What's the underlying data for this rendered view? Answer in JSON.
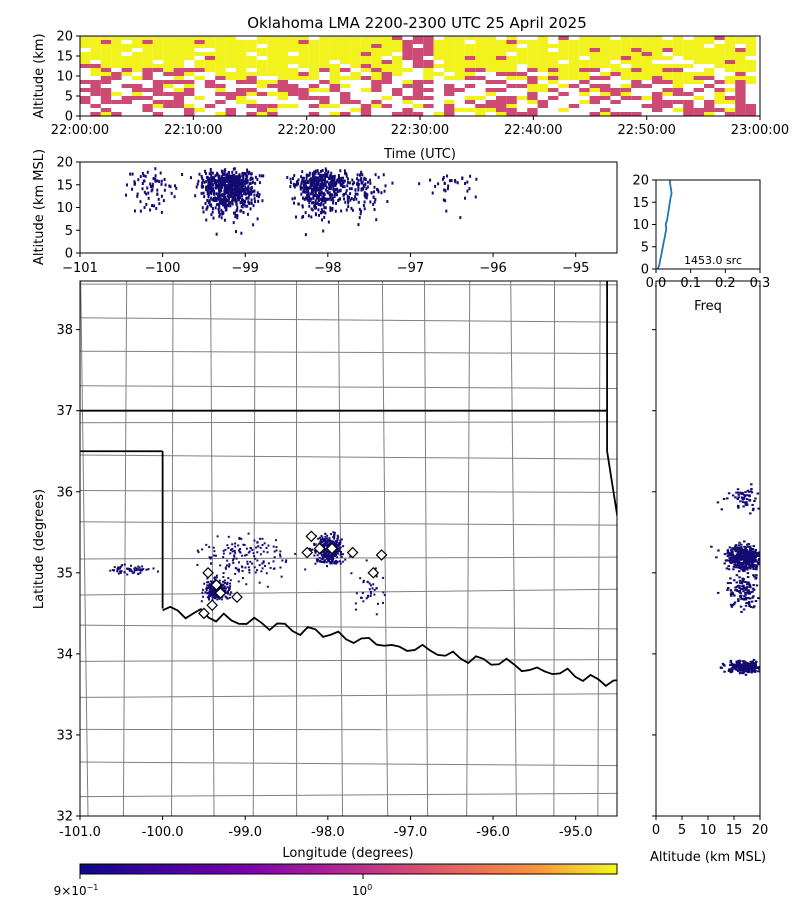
{
  "title": "Oklahoma LMA 2200-2300 UTC 25 April 2025",
  "colors": {
    "dark": "#140b72",
    "mid": "#cc4a73",
    "high": "#f2f21f",
    "line": "#1f77b4"
  },
  "chart_data": [
    {
      "id": "time_height",
      "type": "heatmap",
      "ylabel": "Altitude (km)",
      "xlabel": "Time (UTC)",
      "ylim": [
        0,
        20
      ],
      "yticks": [
        0,
        5,
        10,
        15,
        20
      ],
      "xticks": [
        "22:00:00",
        "22:10:00",
        "22:20:00",
        "22:30:00",
        "22:40:00",
        "22:50:00",
        "23:00:00"
      ],
      "xlim": [
        "22:00:00",
        "23:00:00"
      ],
      "color_scale": "plasma, log"
    },
    {
      "id": "lon_alt",
      "type": "scatter",
      "ylabel": "Altitude (km MSL)",
      "xlim": [
        -101,
        -94.5
      ],
      "ylim": [
        0,
        20
      ],
      "xticks": [
        -101,
        -100,
        -99,
        -98,
        -97,
        -96,
        -95
      ],
      "yticks": [
        0,
        5,
        10,
        15,
        20
      ]
    },
    {
      "id": "alt_hist",
      "type": "line",
      "xlabel": "Freq",
      "xlim": [
        0,
        0.3
      ],
      "ylim": [
        0,
        20
      ],
      "xticks": [
        "0.0",
        "0.1",
        "0.2",
        "0.3"
      ],
      "yticks": [
        0,
        5,
        10,
        15,
        20
      ],
      "annotation": "1453.0 src",
      "points": [
        [
          0.005,
          0
        ],
        [
          0.01,
          1
        ],
        [
          0.012,
          2
        ],
        [
          0.015,
          3
        ],
        [
          0.017,
          4
        ],
        [
          0.02,
          5
        ],
        [
          0.022,
          6
        ],
        [
          0.025,
          7
        ],
        [
          0.027,
          8
        ],
        [
          0.03,
          9
        ],
        [
          0.028,
          10
        ],
        [
          0.032,
          11
        ],
        [
          0.034,
          12
        ],
        [
          0.036,
          13
        ],
        [
          0.038,
          14
        ],
        [
          0.04,
          15
        ],
        [
          0.042,
          16
        ],
        [
          0.045,
          17
        ],
        [
          0.043,
          18
        ],
        [
          0.041,
          19
        ],
        [
          0.04,
          20
        ]
      ]
    },
    {
      "id": "plan_view",
      "type": "scatter",
      "xlabel": "Longitude (degrees)",
      "ylabel": "Latitude (degrees)",
      "xlim": [
        -101.0,
        -94.5
      ],
      "ylim": [
        32,
        38.6
      ],
      "xticks": [
        "-101.0",
        "-100.0",
        "-99.0",
        "-98.0",
        "-97.0",
        "-96.0",
        "-95.0"
      ],
      "yticks": [
        32,
        33,
        34,
        35,
        36,
        37,
        38
      ],
      "flash_markers": [
        [
          -99.45,
          35.0
        ],
        [
          -99.35,
          34.85
        ],
        [
          -99.3,
          34.75
        ],
        [
          -99.4,
          34.6
        ],
        [
          -99.5,
          34.5
        ],
        [
          -99.1,
          34.7
        ],
        [
          -98.2,
          35.45
        ],
        [
          -98.1,
          35.3
        ],
        [
          -97.95,
          35.3
        ],
        [
          -98.25,
          35.25
        ],
        [
          -97.7,
          35.25
        ],
        [
          -97.45,
          35.0
        ],
        [
          -97.35,
          35.22
        ]
      ]
    },
    {
      "id": "alt_lat",
      "type": "scatter",
      "xlabel": "Altitude (km MSL)",
      "xlim": [
        0,
        20
      ],
      "xticks": [
        0,
        5,
        10,
        15,
        20
      ],
      "ylim": [
        32,
        38.6
      ]
    }
  ],
  "colorbar": {
    "scale": "log",
    "tick_mantissa": "9",
    "tick_times": "×",
    "tick_base": "10",
    "tick_exp1": "−1",
    "tick2_base": "10",
    "tick2_exp": "0"
  }
}
